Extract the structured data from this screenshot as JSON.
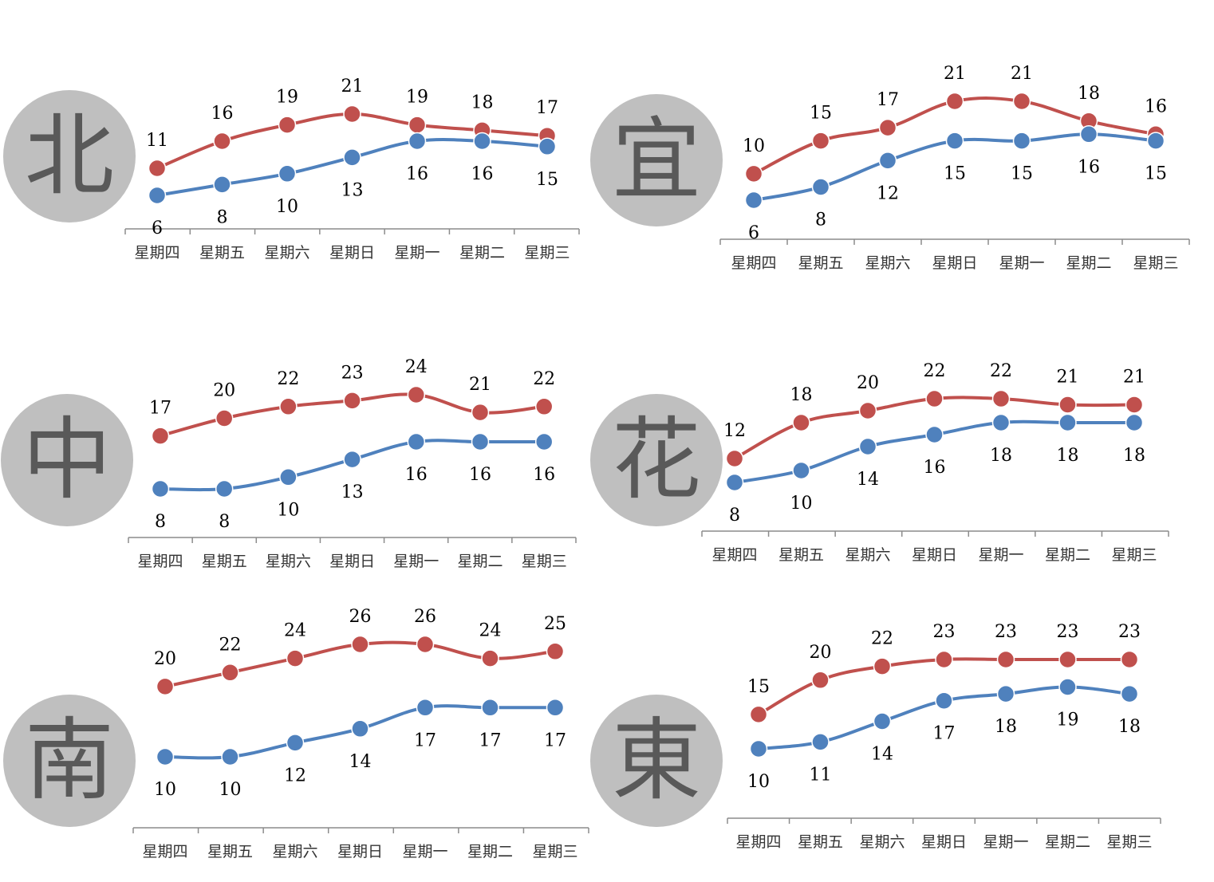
{
  "colors": {
    "high": "#c0504d",
    "low": "#4f81bd",
    "badge_bg": "#bfbfbf",
    "badge_text": "#595959"
  },
  "chart_data": [
    {
      "type": "line",
      "badge": "北",
      "categories": [
        "星期四",
        "星期五",
        "星期六",
        "星期日",
        "星期一",
        "星期二",
        "星期三"
      ],
      "series": [
        {
          "values": [
            11,
            16,
            19,
            21,
            19,
            18,
            17
          ],
          "color": "#c0504d"
        },
        {
          "values": [
            6,
            8,
            10,
            13,
            16,
            16,
            15
          ],
          "color": "#4f81bd"
        }
      ]
    },
    {
      "type": "line",
      "badge": "宜",
      "categories": [
        "星期四",
        "星期五",
        "星期六",
        "星期日",
        "星期一",
        "星期二",
        "星期三"
      ],
      "series": [
        {
          "values": [
            10,
            15,
            17,
            21,
            21,
            18,
            16
          ],
          "color": "#c0504d"
        },
        {
          "values": [
            6,
            8,
            12,
            15,
            15,
            16,
            15
          ],
          "color": "#4f81bd"
        }
      ]
    },
    {
      "type": "line",
      "badge": "中",
      "categories": [
        "星期四",
        "星期五",
        "星期六",
        "星期日",
        "星期一",
        "星期二",
        "星期三"
      ],
      "series": [
        {
          "values": [
            17,
            20,
            22,
            23,
            24,
            21,
            22
          ],
          "color": "#c0504d"
        },
        {
          "values": [
            8,
            8,
            10,
            13,
            16,
            16,
            16
          ],
          "color": "#4f81bd"
        }
      ]
    },
    {
      "type": "line",
      "badge": "花",
      "categories": [
        "星期四",
        "星期五",
        "星期六",
        "星期日",
        "星期一",
        "星期二",
        "星期三"
      ],
      "series": [
        {
          "values": [
            12,
            18,
            20,
            22,
            22,
            21,
            21
          ],
          "color": "#c0504d"
        },
        {
          "values": [
            8,
            10,
            14,
            16,
            18,
            18,
            18
          ],
          "color": "#4f81bd"
        }
      ]
    },
    {
      "type": "line",
      "badge": "南",
      "categories": [
        "星期四",
        "星期五",
        "星期六",
        "星期日",
        "星期一",
        "星期二",
        "星期三"
      ],
      "series": [
        {
          "values": [
            20,
            22,
            24,
            26,
            26,
            24,
            25
          ],
          "color": "#c0504d"
        },
        {
          "values": [
            10,
            10,
            12,
            14,
            17,
            17,
            17
          ],
          "color": "#4f81bd"
        }
      ]
    },
    {
      "type": "line",
      "badge": "東",
      "categories": [
        "星期四",
        "星期五",
        "星期六",
        "星期日",
        "星期一",
        "星期二",
        "星期三"
      ],
      "series": [
        {
          "values": [
            15,
            20,
            22,
            23,
            23,
            23,
            23
          ],
          "color": "#c0504d"
        },
        {
          "values": [
            10,
            11,
            14,
            17,
            18,
            19,
            18
          ],
          "color": "#4f81bd"
        }
      ]
    }
  ]
}
